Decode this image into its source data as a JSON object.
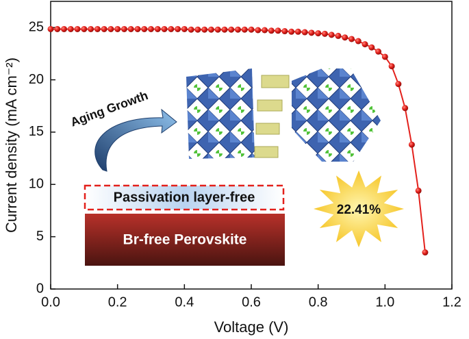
{
  "chart_data": {
    "type": "line",
    "x_label": "Voltage (V)",
    "y_label": "Current density (mA cm⁻²)",
    "annotations": {
      "arrow": "Aging Growth",
      "layer": "Passivation layer-free",
      "base": "Br-free Perovskite",
      "efficiency": "22.41%"
    },
    "x": [
      0,
      0.02,
      0.04,
      0.06,
      0.08,
      0.1,
      0.12,
      0.14,
      0.16,
      0.18,
      0.2,
      0.22,
      0.24,
      0.26,
      0.28,
      0.3,
      0.32,
      0.34,
      0.36,
      0.38,
      0.4,
      0.42,
      0.44,
      0.46,
      0.48,
      0.5,
      0.52,
      0.54,
      0.56,
      0.58,
      0.6,
      0.62,
      0.64,
      0.66,
      0.68,
      0.7,
      0.72,
      0.74,
      0.76,
      0.78,
      0.8,
      0.82,
      0.84,
      0.86,
      0.88,
      0.9,
      0.92,
      0.94,
      0.96,
      0.98,
      1.0,
      1.02,
      1.04,
      1.06,
      1.08,
      1.1,
      1.12
    ],
    "series": [
      {
        "color": "#e3201b",
        "values": [
          24.85,
          24.85,
          24.85,
          24.85,
          24.85,
          24.85,
          24.85,
          24.85,
          24.85,
          24.85,
          24.85,
          24.85,
          24.85,
          24.85,
          24.85,
          24.85,
          24.85,
          24.85,
          24.85,
          24.85,
          24.85,
          24.8,
          24.8,
          24.8,
          24.8,
          24.8,
          24.8,
          24.8,
          24.8,
          24.8,
          24.8,
          24.75,
          24.75,
          24.7,
          24.7,
          24.65,
          24.6,
          24.6,
          24.55,
          24.5,
          24.45,
          24.4,
          24.3,
          24.2,
          24.05,
          23.9,
          23.7,
          23.4,
          23.1,
          22.7,
          22.2,
          21.3,
          19.6,
          17.3,
          13.8,
          9.4,
          3.5
        ]
      }
    ],
    "xlim": [
      0,
      1.2
    ],
    "ylim": [
      0,
      27.5
    ],
    "xticks": [
      {
        "value": 0,
        "label": "0.0"
      },
      0.2,
      0.4,
      0.6,
      0.8,
      {
        "value": 1,
        "label": "1.0"
      },
      1.2
    ],
    "yticks": [
      0,
      5,
      10,
      15,
      20,
      25
    ]
  }
}
